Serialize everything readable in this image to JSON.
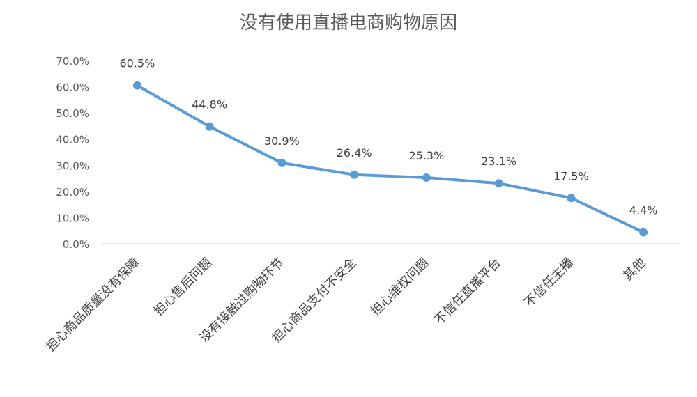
{
  "chart_data": {
    "type": "line",
    "title": "没有使用直播电商购物原因",
    "xlabel": "",
    "ylabel": "",
    "categories": [
      "担心商品质量没有保障",
      "担心售后问题",
      "没有接触过购物环节",
      "担心商品支付不安全",
      "担心维权问题",
      "不信任直播平台",
      "不信任主播",
      "其他"
    ],
    "series": [
      {
        "values": [
          60.5,
          44.8,
          30.9,
          26.4,
          25.3,
          23.1,
          17.5,
          4.4
        ]
      }
    ],
    "data_labels": [
      "60.5%",
      "44.8%",
      "30.9%",
      "26.4%",
      "25.3%",
      "23.1%",
      "17.5%",
      "4.4%"
    ],
    "ylim": [
      0,
      70
    ],
    "y_ticks": [
      "0.0%",
      "10.0%",
      "20.0%",
      "30.0%",
      "40.0%",
      "50.0%",
      "60.0%",
      "70.0%"
    ],
    "grid": false,
    "legend": "none",
    "colors": {
      "line": "#5B9BD5",
      "axis": "#D9D9D9"
    }
  }
}
